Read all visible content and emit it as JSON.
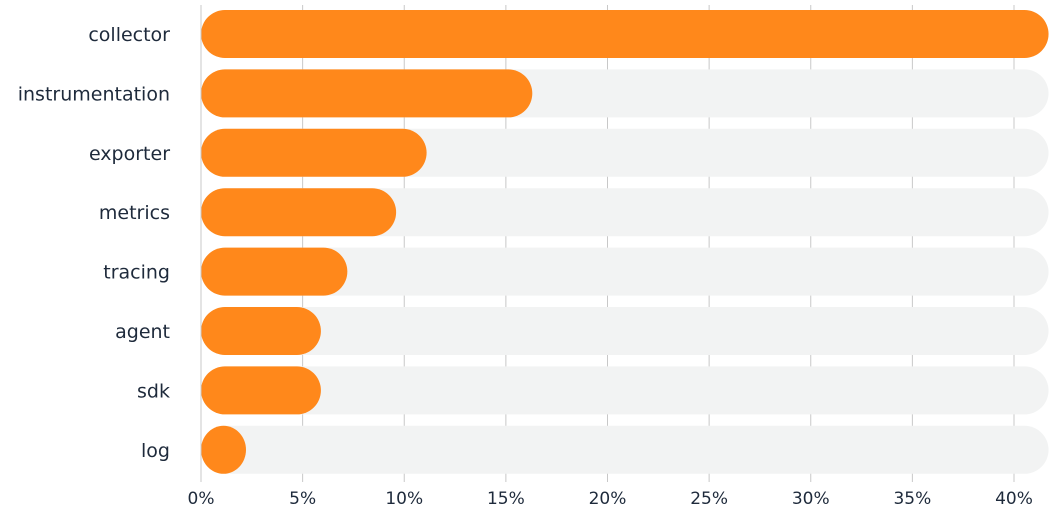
{
  "chart_data": {
    "type": "bar",
    "orientation": "horizontal",
    "categories": [
      "collector",
      "instrumentation",
      "exporter",
      "metrics",
      "tracing",
      "agent",
      "sdk",
      "log"
    ],
    "values": [
      41.7,
      16.3,
      11.1,
      9.6,
      7.2,
      5.9,
      5.9,
      2.2
    ],
    "xlim": [
      0,
      41.7
    ],
    "xticks": [
      0,
      5,
      10,
      15,
      20,
      25,
      30,
      35,
      40
    ],
    "xtick_labels": [
      "0%",
      "5%",
      "10%",
      "15%",
      "20%",
      "25%",
      "30%",
      "35%",
      "40%"
    ],
    "title": "",
    "xlabel": "",
    "ylabel": "",
    "grid": "vertical",
    "legend": "none",
    "colors": {
      "bar": "#ff881b",
      "track": "#f2f3f3",
      "grid": "#c8c8c8",
      "text": "#1e2a3b"
    }
  }
}
